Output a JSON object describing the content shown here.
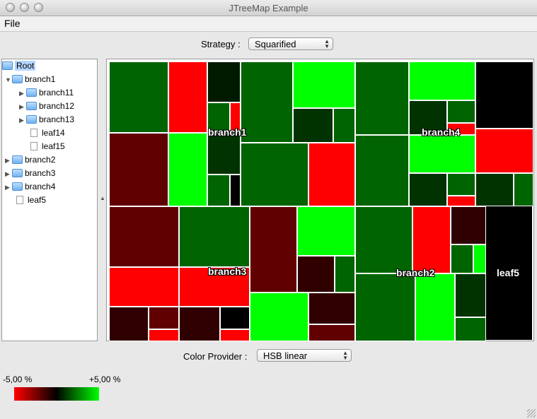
{
  "window": {
    "title": "JTreeMap Example"
  },
  "menubar": {
    "file": "File"
  },
  "strategy": {
    "label": "Strategy :",
    "value": "Squarified"
  },
  "tree": {
    "root": "Root",
    "branch1": "branch1",
    "branch11": "branch11",
    "branch12": "branch12",
    "branch13": "branch13",
    "leaf14": "leaf14",
    "leaf15": "leaf15",
    "branch2": "branch2",
    "branch3": "branch3",
    "branch4": "branch4",
    "leaf5": "leaf5"
  },
  "treemap": {
    "labels": {
      "branch1": "branch1",
      "branch4": "branch4",
      "branch3": "branch3",
      "branch2": "branch2",
      "leaf5": "leaf5"
    }
  },
  "color_provider": {
    "label": "Color Provider :",
    "value": "HSB linear"
  },
  "legend": {
    "min": "-5,00 %",
    "max": "+5,00 %"
  },
  "colors": {
    "bright_green": "#00ff00",
    "dark_green": "#006400",
    "red": "#ff0000",
    "dark_red": "#600000",
    "black": "#000000"
  }
}
